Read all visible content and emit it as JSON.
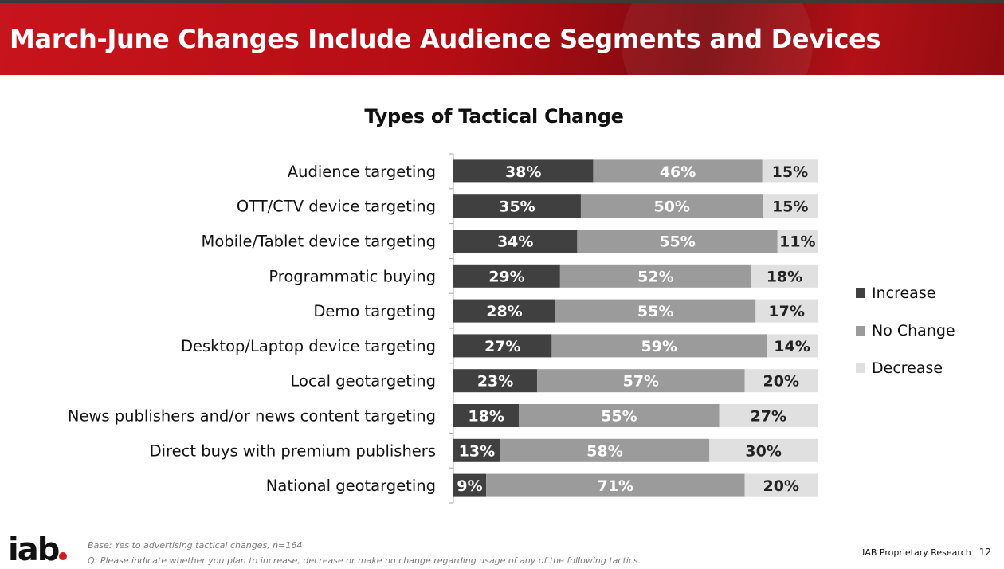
{
  "header": {
    "title": "March-June Changes Include Audience Segments and Devices"
  },
  "colors": {
    "banner": "#c8141c",
    "increase": "#404040",
    "no_change": "#9b9b9b",
    "decrease": "#e0e0e0",
    "logo_dot": "#d7161d"
  },
  "chart_data": {
    "type": "bar",
    "orientation": "horizontal",
    "stacked": true,
    "title": "Types of Tactical Change",
    "categories": [
      "Audience targeting",
      "OTT/CTV device targeting",
      "Mobile/Tablet device targeting",
      "Programmatic buying",
      "Demo targeting",
      "Desktop/Laptop device targeting",
      "Local geotargeting",
      "News publishers and/or news content targeting",
      "Direct buys with premium publishers",
      "National geotargeting"
    ],
    "series": [
      {
        "name": "Increase",
        "values": [
          38,
          35,
          34,
          29,
          28,
          27,
          23,
          18,
          13,
          9
        ]
      },
      {
        "name": "No Change",
        "values": [
          46,
          50,
          55,
          52,
          55,
          59,
          57,
          55,
          58,
          71
        ]
      },
      {
        "name": "Decrease",
        "values": [
          15,
          15,
          11,
          18,
          17,
          14,
          20,
          27,
          30,
          20
        ]
      }
    ],
    "value_suffix": "%",
    "legend_position": "right",
    "grid": false
  },
  "legend": {
    "items": [
      "Increase",
      "No Change",
      "Decrease"
    ]
  },
  "footer": {
    "logo": "iab",
    "base": "Base: Yes to advertising tactical changes, n=164",
    "question": "Q: Please indicate whether you plan to increase, decrease or make no change regarding usage of any of the following tactics.",
    "label": "IAB Proprietary Research",
    "page": "12"
  }
}
